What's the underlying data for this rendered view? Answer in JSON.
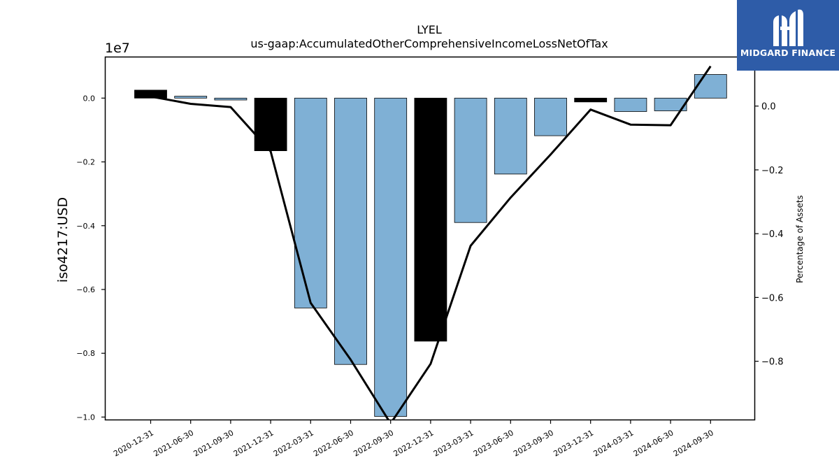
{
  "chart_data": {
    "type": "bar",
    "title": "LYEL",
    "subtitle": "us-gaap:AccumulatedOtherComprehensiveIncomeLossNetOfTax",
    "ylabel": "iso4217:USD",
    "y2label": "Percentage of Assets",
    "y_multiplier": "1e7",
    "ylim": [
      -1.01,
      0.13
    ],
    "y2lim": [
      -0.985,
      0.155
    ],
    "yticks": [
      0.0,
      -0.2,
      -0.4,
      -0.6,
      -0.8,
      -1.0
    ],
    "yticklabels": [
      "0.0",
      "−0.2",
      "−0.4",
      "−0.6",
      "−0.8",
      "−1.0"
    ],
    "y2ticks": [
      0.0,
      -0.2,
      -0.4,
      -0.6,
      -0.8
    ],
    "y2ticklabels": [
      "0.0",
      "−0.2",
      "−0.4",
      "−0.6",
      "−0.8"
    ],
    "categories": [
      "2020-12-31",
      "2021-06-30",
      "2021-09-30",
      "2021-12-31",
      "2022-03-31",
      "2022-06-30",
      "2022-09-30",
      "2022-12-31",
      "2023-03-31",
      "2023-06-30",
      "2023-09-30",
      "2023-12-31",
      "2024-03-31",
      "2024-06-30",
      "2024-09-30"
    ],
    "series": [
      {
        "type": "bar",
        "values": [
          0.025,
          0.006,
          -0.006,
          -0.165,
          -0.658,
          -0.835,
          -0.998,
          -0.762,
          -0.39,
          -0.238,
          -0.118,
          -0.012,
          -0.042,
          -0.04,
          0.074
        ],
        "colors": [
          "#000000",
          "#7fb0d5",
          "#7fb0d5",
          "#000000",
          "#7fb0d5",
          "#7fb0d5",
          "#7fb0d5",
          "#000000",
          "#7fb0d5",
          "#7fb0d5",
          "#7fb0d5",
          "#000000",
          "#7fb0d5",
          "#7fb0d5",
          "#7fb0d5"
        ]
      },
      {
        "type": "line",
        "axis": "right",
        "color": "#000000",
        "values": [
          0.03,
          0.007,
          -0.003,
          -0.142,
          -0.617,
          -0.795,
          -0.995,
          -0.808,
          -0.438,
          -0.287,
          -0.152,
          -0.011,
          -0.058,
          -0.06,
          0.125
        ]
      }
    ]
  },
  "logo": {
    "text": "MIDGARD FINANCE",
    "color": "#2e5ca8"
  }
}
